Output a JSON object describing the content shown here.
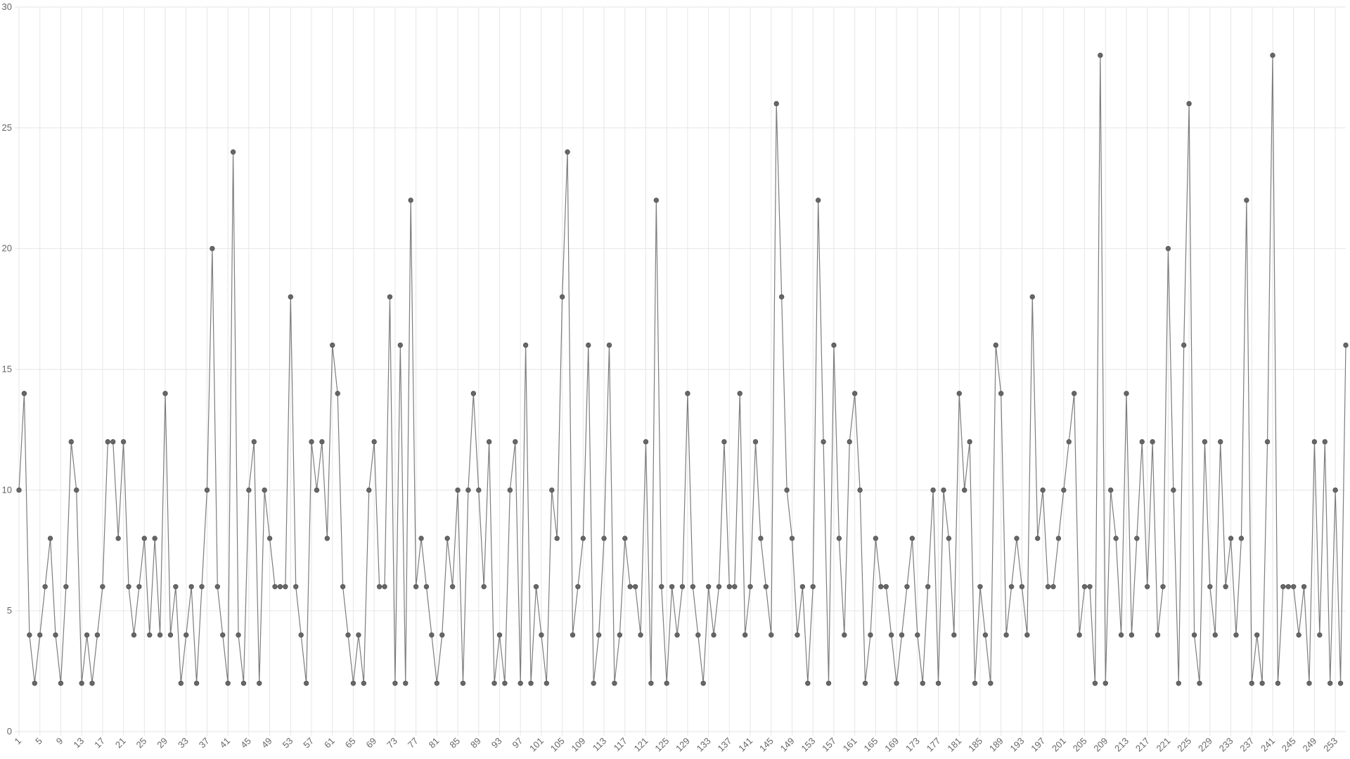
{
  "chart_data": {
    "type": "line",
    "categories": [
      "1",
      null,
      null,
      null,
      "5",
      null,
      null,
      null,
      "9",
      null,
      null,
      null,
      "13",
      null,
      null,
      null,
      "17",
      null,
      null,
      null,
      "21",
      null,
      null,
      null,
      "25",
      null,
      null,
      null,
      "29",
      null,
      null,
      null,
      "33",
      null,
      null,
      null,
      "37",
      null,
      null,
      null,
      "41",
      null,
      null,
      null,
      "45",
      null,
      null,
      null,
      "49",
      null,
      null,
      null,
      "53",
      null,
      null,
      null,
      "57",
      null,
      null,
      null,
      "61",
      null,
      null,
      null,
      "65",
      null,
      null,
      null,
      "69",
      null,
      null,
      null,
      "73",
      null,
      null,
      null,
      "77",
      null,
      null,
      null,
      "81",
      null,
      null,
      null,
      "85",
      null,
      null,
      null,
      "89",
      null,
      null,
      null,
      "93",
      null,
      null,
      null,
      "97",
      null,
      null,
      null,
      "101",
      null,
      null,
      null,
      "105",
      null,
      null,
      null,
      "109",
      null,
      null,
      null,
      "113",
      null,
      null,
      null,
      "117",
      null,
      null,
      null,
      "121",
      null,
      null,
      null,
      "125",
      null,
      null,
      null,
      "129",
      null,
      null,
      null,
      "133",
      null,
      null,
      null,
      "137",
      null,
      null,
      null,
      "141",
      null,
      null,
      null,
      "145",
      null,
      null,
      null,
      "149",
      null,
      null,
      null,
      "153",
      null,
      null,
      null,
      "157",
      null,
      null,
      null,
      "161",
      null,
      null,
      null,
      "165",
      null,
      null,
      null,
      "169",
      null,
      null,
      null,
      "173",
      null,
      null,
      null,
      "177",
      null,
      null,
      null,
      "181",
      null,
      null,
      null,
      "185",
      null,
      null,
      null,
      "189",
      null,
      null,
      null,
      "193",
      null,
      null,
      null,
      "197",
      null,
      null,
      null,
      "201",
      null,
      null,
      null,
      "205",
      null,
      null,
      null,
      "209",
      null,
      null,
      null,
      "213",
      null,
      null,
      null,
      "217",
      null,
      null,
      null,
      "221",
      null,
      null,
      null,
      "225",
      null,
      null,
      null,
      "229",
      null,
      null,
      null,
      "233",
      null,
      null,
      null,
      "237",
      null,
      null,
      null,
      "241",
      null,
      null,
      null,
      "245",
      null,
      null,
      null,
      "249",
      null,
      null,
      null,
      "253",
      null,
      null
    ],
    "values": [
      10,
      14,
      4,
      2,
      4,
      6,
      8,
      4,
      2,
      6,
      12,
      10,
      2,
      4,
      2,
      4,
      6,
      12,
      12,
      8,
      12,
      6,
      4,
      6,
      8,
      4,
      8,
      4,
      14,
      4,
      6,
      2,
      4,
      6,
      2,
      6,
      10,
      20,
      6,
      4,
      2,
      24,
      4,
      2,
      10,
      12,
      2,
      10,
      8,
      6,
      6,
      6,
      18,
      6,
      4,
      2,
      12,
      10,
      12,
      8,
      16,
      14,
      6,
      4,
      2,
      4,
      2,
      10,
      12,
      6,
      6,
      18,
      2,
      16,
      2,
      22,
      6,
      8,
      6,
      4,
      2,
      4,
      8,
      6,
      10,
      2,
      10,
      14,
      10,
      6,
      12,
      2,
      4,
      2,
      10,
      12,
      2,
      16,
      2,
      6,
      4,
      2,
      10,
      8,
      18,
      24,
      4,
      6,
      8,
      16,
      2,
      4,
      8,
      16,
      2,
      4,
      8,
      6,
      6,
      4,
      12,
      2,
      22,
      6,
      2,
      6,
      4,
      6,
      14,
      6,
      4,
      2,
      6,
      4,
      6,
      12,
      6,
      6,
      14,
      4,
      6,
      12,
      8,
      6,
      4,
      26,
      18,
      10,
      8,
      4,
      6,
      2,
      6,
      22,
      12,
      2,
      16,
      8,
      4,
      12,
      14,
      10,
      2,
      4,
      8,
      6,
      6,
      4,
      2,
      4,
      6,
      8,
      4,
      2,
      6,
      10,
      2,
      10,
      8,
      4,
      14,
      10,
      12,
      2,
      6,
      4,
      2,
      16,
      14,
      4,
      6,
      8,
      6,
      4,
      18,
      8,
      10,
      6,
      6,
      8,
      10,
      12,
      14,
      4,
      6,
      6,
      2,
      28,
      2,
      10,
      8,
      4,
      14,
      4,
      8,
      12,
      6,
      12,
      4,
      6,
      20,
      10,
      2,
      16,
      26,
      4,
      2,
      12,
      6,
      4,
      12,
      6,
      8,
      4,
      8,
      22,
      2,
      4,
      2,
      12,
      28,
      2,
      6,
      6,
      6,
      4,
      6,
      2,
      12,
      4,
      12,
      2,
      10,
      2,
      16
    ],
    "color": "#666666",
    "ylim": [
      0,
      30
    ],
    "yticks": [
      0,
      5,
      10,
      15,
      20,
      25,
      30
    ],
    "grid": true
  }
}
